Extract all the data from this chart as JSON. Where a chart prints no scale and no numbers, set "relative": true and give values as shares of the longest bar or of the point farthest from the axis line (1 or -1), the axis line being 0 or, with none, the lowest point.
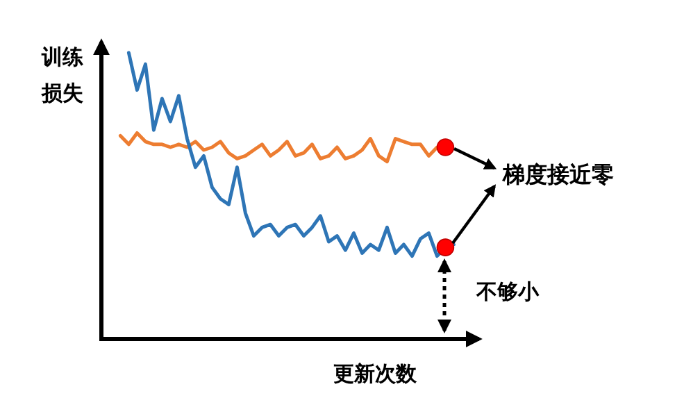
{
  "chart_data": {
    "type": "line",
    "relative": true,
    "xlabel": "更新次数",
    "ylabel": "训练损失",
    "categories": [
      null,
      null,
      null,
      null,
      null,
      null,
      null,
      null,
      null,
      null,
      null,
      null,
      null,
      null,
      null,
      null,
      null,
      null,
      null,
      null,
      null,
      null,
      null,
      null,
      null,
      null,
      null,
      null,
      null,
      null,
      null,
      null,
      null,
      null,
      null,
      null,
      null,
      null,
      null,
      null,
      null
    ],
    "series": [
      {
        "color": "#ed7d31",
        "values": [
          0.71,
          0.68,
          0.72,
          0.69,
          0.68,
          0.68,
          0.67,
          0.68,
          0.67,
          0.69,
          0.66,
          0.67,
          0.69,
          0.65,
          0.63,
          0.64,
          0.66,
          0.68,
          0.64,
          0.66,
          0.69,
          0.64,
          0.65,
          0.68,
          0.63,
          0.64,
          0.67,
          0.63,
          0.64,
          0.66,
          0.7,
          0.64,
          0.62,
          0.7,
          0.69,
          0.68,
          0.68,
          0.64,
          0.67,
          0.67,
          null
        ]
      },
      {
        "color": "#2e75b6",
        "values": [
          null,
          1,
          0.87,
          0.96,
          0.73,
          0.84,
          0.76,
          0.85,
          0.7,
          0.6,
          0.64,
          0.53,
          0.49,
          0.47,
          0.6,
          0.44,
          0.36,
          0.39,
          0.4,
          0.36,
          0.39,
          0.4,
          0.36,
          0.39,
          0.43,
          0.34,
          0.36,
          0.31,
          0.37,
          0.3,
          0.33,
          0.31,
          0.39,
          0.3,
          0.33,
          0.29,
          0.35,
          0.37,
          0.29,
          0.32,
          0.33
        ]
      }
    ],
    "annotations": [
      "梯度接近零",
      "不够小"
    ]
  }
}
